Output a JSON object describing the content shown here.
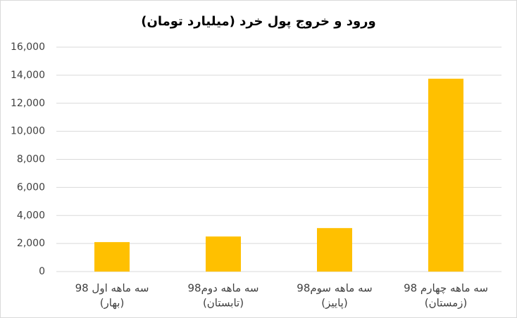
{
  "chart_data": {
    "type": "bar",
    "title": "ورود و خروج پول خرد (میلیارد تومان)",
    "categories": [
      [
        "سه ماهه اول 98",
        "(بهار)"
      ],
      [
        "سه ماهه دوم98",
        "(تابستان)"
      ],
      [
        "سه ماهه سوم98",
        "(پاییز)"
      ],
      [
        "سه ماهه چهارم 98",
        "(زمستان)"
      ]
    ],
    "values": [
      2100,
      2500,
      3100,
      13750
    ],
    "color": "#ffc000",
    "ylim": [
      0,
      16000
    ],
    "yticks": [
      0,
      {
        "value": 2000,
        "label": "2,000"
      },
      {
        "value": 4000,
        "label": "4,000"
      },
      {
        "value": 6000,
        "label": "6,000"
      },
      {
        "value": 8000,
        "label": "8,000"
      },
      {
        "value": 10000,
        "label": "10,000"
      },
      {
        "value": 12000,
        "label": "12,000"
      },
      {
        "value": 14000,
        "label": "14,000"
      },
      {
        "value": 16000,
        "label": "16,000"
      }
    ],
    "grid": true
  }
}
